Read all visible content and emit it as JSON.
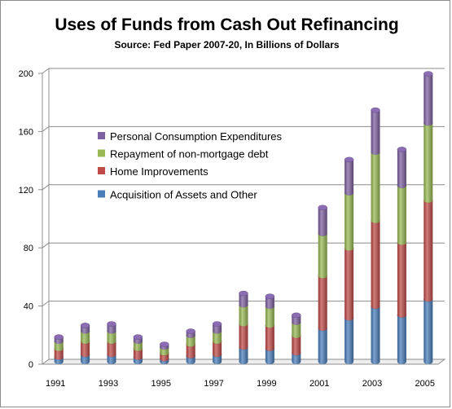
{
  "chart_data": {
    "type": "bar",
    "stacked": true,
    "title": "Uses of Funds from Cash Out Refinancing",
    "subtitle": "Source:  Fed Paper 2007-20,  In Billions of Dollars",
    "xlabel": "",
    "ylabel": "",
    "ylim": [
      0,
      200
    ],
    "yticks": [
      0,
      40,
      80,
      120,
      160,
      200
    ],
    "grid": true,
    "legend_position": "top-left inside",
    "categories": [
      "1991",
      "1992",
      "1993",
      "1994",
      "1995",
      "1996",
      "1997",
      "1998",
      "1999",
      "2000",
      "2001",
      "2002",
      "2003",
      "2004",
      "2005"
    ],
    "xtick_labels": [
      "1991",
      "1993",
      "1995",
      "1997",
      "1999",
      "2001",
      "2003",
      "2005"
    ],
    "series": [
      {
        "name": "Acquisition of Assets and Other",
        "color": "#4a7ebb",
        "values": [
          3,
          5,
          5,
          3,
          2,
          4,
          5,
          10,
          9,
          6,
          23,
          30,
          38,
          32,
          43
        ]
      },
      {
        "name": "Home Improvements",
        "color": "#be4b48",
        "values": [
          6,
          9,
          9,
          6,
          4,
          8,
          9,
          16,
          16,
          12,
          36,
          48,
          59,
          50,
          68
        ]
      },
      {
        "name": "Repayment of non-mortgage debt",
        "color": "#98b954",
        "values": [
          5,
          7,
          7,
          5,
          4,
          6,
          7,
          13,
          13,
          9,
          29,
          38,
          47,
          39,
          53
        ]
      },
      {
        "name": "Personal Consumption Expenditures",
        "color": "#7d60a0",
        "values": [
          3,
          4,
          5,
          3,
          2,
          3,
          5,
          8,
          7,
          5,
          18,
          23,
          29,
          25,
          34
        ]
      }
    ]
  }
}
